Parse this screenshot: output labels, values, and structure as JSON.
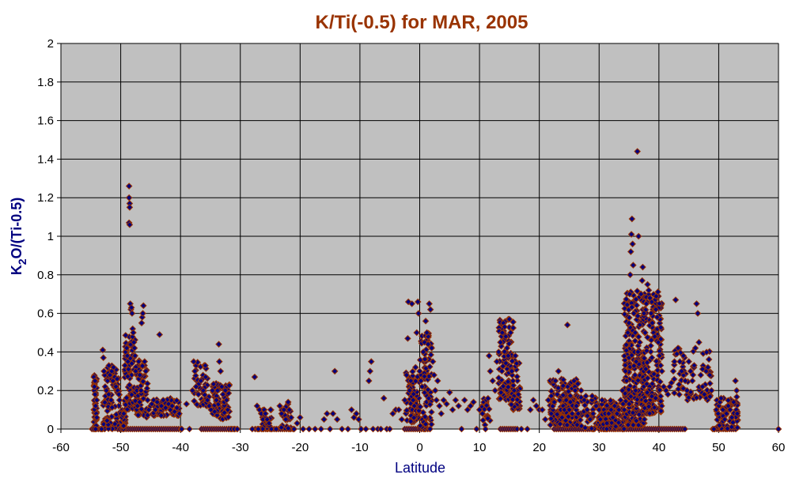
{
  "colors": {
    "title": "#993300",
    "axis_label": "#000080",
    "plot_bg": "#c0c0c0",
    "grid": "#000000",
    "marker_fill": "#000080",
    "marker_edge": "#993300"
  },
  "chart_data": {
    "type": "scatter",
    "title": "K/Ti(-0.5)  for MAR, 2005",
    "xlabel": "Latitude",
    "ylabel_main": "K",
    "ylabel_sub": "2",
    "ylabel_rest": "O/(Ti-0.5)",
    "xlim": [
      -60,
      60
    ],
    "ylim": [
      0,
      2
    ],
    "x_ticks": [
      -60,
      -50,
      -40,
      -30,
      -20,
      -10,
      0,
      10,
      20,
      30,
      40,
      50,
      60
    ],
    "y_ticks": [
      0,
      0.2,
      0.4,
      0.6,
      0.8,
      1,
      1.2,
      1.4,
      1.6,
      1.8,
      2
    ],
    "y_tick_labels": [
      "0",
      "0.2",
      "0.4",
      "0.6",
      "0.8",
      "1",
      "1.2",
      "1.4",
      "1.6",
      "1.8",
      "2"
    ],
    "grid": true,
    "legend": "none",
    "marker": "diamond",
    "points": [
      [
        -54.5,
        0.27
      ],
      [
        -54.4,
        0.22
      ],
      [
        -54.3,
        0.18
      ],
      [
        -54.2,
        0.12
      ],
      [
        -54.1,
        0.08
      ],
      [
        -54.0,
        0.06
      ],
      [
        -54.3,
        0.25
      ],
      [
        -54.5,
        0.0
      ],
      [
        -54.2,
        0.0
      ],
      [
        -54.0,
        0.15
      ],
      [
        -53.2,
        0.0
      ],
      [
        -53.0,
        0.41
      ],
      [
        -52.9,
        0.37
      ],
      [
        -52.8,
        0.3
      ],
      [
        -52.6,
        0.22
      ],
      [
        -52.4,
        0.2
      ],
      [
        -52.2,
        0.25
      ],
      [
        -52.0,
        0.18
      ],
      [
        -51.8,
        0.28
      ],
      [
        -51.6,
        0.15
      ],
      [
        -51.5,
        0.3
      ],
      [
        -51.3,
        0.25
      ],
      [
        -51.2,
        0.32
      ],
      [
        -51.0,
        0.27
      ],
      [
        -50.8,
        0.22
      ],
      [
        -50.6,
        0.26
      ],
      [
        -50.5,
        0.2
      ],
      [
        -50.3,
        0.18
      ],
      [
        -50.2,
        0.15
      ],
      [
        -50.0,
        0.08
      ],
      [
        -49.8,
        0.06
      ],
      [
        -49.6,
        0.07
      ],
      [
        -49.5,
        0.08
      ],
      [
        -49.3,
        0.33
      ],
      [
        -49.2,
        0.4
      ],
      [
        -49.0,
        0.42
      ],
      [
        -48.9,
        0.38
      ],
      [
        -48.8,
        0.35
      ],
      [
        -48.7,
        0.31
      ],
      [
        -48.6,
        1.26
      ],
      [
        -48.6,
        1.2
      ],
      [
        -48.5,
        1.17
      ],
      [
        -48.5,
        1.15
      ],
      [
        -48.6,
        1.07
      ],
      [
        -48.5,
        1.06
      ],
      [
        -48.4,
        0.65
      ],
      [
        -48.3,
        0.62
      ],
      [
        -48.2,
        0.63
      ],
      [
        -48.1,
        0.6
      ],
      [
        -48.0,
        0.52
      ],
      [
        -47.9,
        0.5
      ],
      [
        -47.8,
        0.45
      ],
      [
        -47.7,
        0.42
      ],
      [
        -47.6,
        0.38
      ],
      [
        -47.5,
        0.3
      ],
      [
        -47.3,
        0.2
      ],
      [
        -47.2,
        0.12
      ],
      [
        -47.0,
        0.35
      ],
      [
        -46.8,
        0.28
      ],
      [
        -46.6,
        0.2
      ],
      [
        -46.5,
        0.55
      ],
      [
        -46.4,
        0.58
      ],
      [
        -46.3,
        0.6
      ],
      [
        -46.2,
        0.64
      ],
      [
        -46.0,
        0.35
      ],
      [
        -45.8,
        0.3
      ],
      [
        -45.5,
        0.15
      ],
      [
        -45.3,
        0.1
      ],
      [
        -45.0,
        0.12
      ],
      [
        -44.8,
        0.13
      ],
      [
        -44.5,
        0.15
      ],
      [
        -44.2,
        0.1
      ],
      [
        -43.9,
        0.14
      ],
      [
        -43.5,
        0.49
      ],
      [
        -43.2,
        0.12
      ],
      [
        -42.9,
        0.15
      ],
      [
        -42.5,
        0.11
      ],
      [
        -42.0,
        0.13
      ],
      [
        -41.7,
        0.1
      ],
      [
        -41.4,
        0.12
      ],
      [
        -41.0,
        0.09
      ],
      [
        -40.6,
        0.11
      ],
      [
        -40.2,
        0.08
      ],
      [
        -39.8,
        0.0
      ],
      [
        -39.0,
        0.13
      ],
      [
        -38.5,
        0.0
      ],
      [
        -38.0,
        0.2
      ],
      [
        -37.8,
        0.35
      ],
      [
        -37.6,
        0.3
      ],
      [
        -37.4,
        0.22
      ],
      [
        -37.0,
        0.18
      ],
      [
        -36.6,
        0.25
      ],
      [
        -36.2,
        0.2
      ],
      [
        -35.8,
        0.27
      ],
      [
        -35.5,
        0.15
      ],
      [
        -35.2,
        0.12
      ],
      [
        -34.9,
        0.1
      ],
      [
        -34.6,
        0.08
      ],
      [
        -34.3,
        0.09
      ],
      [
        -34.0,
        0.15
      ],
      [
        -33.8,
        0.2
      ],
      [
        -33.6,
        0.44
      ],
      [
        -33.5,
        0.35
      ],
      [
        -33.3,
        0.3
      ],
      [
        -33.1,
        0.22
      ],
      [
        -32.9,
        0.18
      ],
      [
        -32.7,
        0.14
      ],
      [
        -32.5,
        0.2
      ],
      [
        -32.3,
        0.15
      ],
      [
        -32.1,
        0.1
      ],
      [
        -31.9,
        0.0
      ],
      [
        -31.5,
        0.0
      ],
      [
        -31.0,
        0.0
      ],
      [
        -30.5,
        0.0
      ],
      [
        -28.0,
        0.0
      ],
      [
        -27.6,
        0.27
      ],
      [
        -27.2,
        0.12
      ],
      [
        -27.0,
        0.0
      ],
      [
        -26.8,
        0.1
      ],
      [
        -26.5,
        0.08
      ],
      [
        -26.2,
        0.05
      ],
      [
        -26.0,
        0.1
      ],
      [
        -25.8,
        0.08
      ],
      [
        -25.5,
        0.05
      ],
      [
        -25.2,
        0.03
      ],
      [
        -24.8,
        0.0
      ],
      [
        -24.0,
        0.0
      ],
      [
        -23.4,
        0.12
      ],
      [
        -23.1,
        0.08
      ],
      [
        -22.7,
        0.1
      ],
      [
        -22.4,
        0.05
      ],
      [
        -22.0,
        0.14
      ],
      [
        -21.8,
        0.1
      ],
      [
        -21.5,
        0.06
      ],
      [
        -21.0,
        0.0
      ],
      [
        -20.5,
        0.03
      ],
      [
        -20.0,
        0.06
      ],
      [
        -19.5,
        0.0
      ],
      [
        -18.5,
        0.0
      ],
      [
        -17.5,
        0.0
      ],
      [
        -16.5,
        0.0
      ],
      [
        -16.0,
        0.05
      ],
      [
        -15.5,
        0.08
      ],
      [
        -15.0,
        0.0
      ],
      [
        -14.5,
        0.08
      ],
      [
        -14.2,
        0.3
      ],
      [
        -13.8,
        0.05
      ],
      [
        -13.0,
        0.0
      ],
      [
        -12.0,
        0.0
      ],
      [
        -11.4,
        0.1
      ],
      [
        -11.0,
        0.06
      ],
      [
        -10.6,
        0.08
      ],
      [
        -10.2,
        0.05
      ],
      [
        -9.8,
        0.0
      ],
      [
        -9.0,
        0.0
      ],
      [
        -8.5,
        0.25
      ],
      [
        -8.3,
        0.3
      ],
      [
        -8.1,
        0.35
      ],
      [
        -7.8,
        0.0
      ],
      [
        -7.0,
        0.0
      ],
      [
        -6.5,
        0.0
      ],
      [
        -6.0,
        0.16
      ],
      [
        -5.5,
        0.0
      ],
      [
        -5.0,
        0.0
      ],
      [
        -4.5,
        0.08
      ],
      [
        -4.0,
        0.1
      ],
      [
        -3.5,
        0.1
      ],
      [
        -3.0,
        0.05
      ],
      [
        -2.5,
        0.15
      ],
      [
        -2.2,
        0.28
      ],
      [
        -2.0,
        0.47
      ],
      [
        -1.9,
        0.66
      ],
      [
        -1.7,
        0.2
      ],
      [
        -1.5,
        0.25
      ],
      [
        -1.3,
        0.65
      ],
      [
        -1.1,
        0.15
      ],
      [
        -0.9,
        0.12
      ],
      [
        -0.7,
        0.32
      ],
      [
        -0.5,
        0.5
      ],
      [
        -0.3,
        0.66
      ],
      [
        -0.2,
        0.6
      ],
      [
        0.0,
        0.3
      ],
      [
        0.2,
        0.25
      ],
      [
        0.4,
        0.22
      ],
      [
        0.6,
        0.4
      ],
      [
        0.8,
        0.45
      ],
      [
        1.0,
        0.56
      ],
      [
        1.2,
        0.5
      ],
      [
        1.4,
        0.44
      ],
      [
        1.6,
        0.65
      ],
      [
        1.8,
        0.62
      ],
      [
        2.0,
        0.42
      ],
      [
        2.2,
        0.35
      ],
      [
        2.4,
        0.28
      ],
      [
        2.6,
        0.2
      ],
      [
        2.8,
        0.15
      ],
      [
        3.0,
        0.25
      ],
      [
        3.3,
        0.12
      ],
      [
        3.6,
        0.08
      ],
      [
        4.0,
        0.15
      ],
      [
        4.5,
        0.13
      ],
      [
        5.0,
        0.19
      ],
      [
        5.5,
        0.1
      ],
      [
        6.0,
        0.15
      ],
      [
        6.5,
        0.12
      ],
      [
        7.0,
        0.0
      ],
      [
        7.5,
        0.15
      ],
      [
        8.0,
        0.1
      ],
      [
        8.5,
        0.12
      ],
      [
        9.0,
        0.14
      ],
      [
        9.5,
        0.0
      ],
      [
        10.0,
        0.1
      ],
      [
        10.5,
        0.08
      ],
      [
        11.0,
        0.0
      ],
      [
        11.6,
        0.38
      ],
      [
        11.8,
        0.3
      ],
      [
        12.2,
        0.25
      ],
      [
        12.6,
        0.2
      ],
      [
        12.9,
        0.35
      ],
      [
        13.2,
        0.4
      ],
      [
        13.5,
        0.45
      ],
      [
        13.8,
        0.5
      ],
      [
        14.0,
        0.55
      ],
      [
        14.2,
        0.53
      ],
      [
        14.4,
        0.48
      ],
      [
        14.6,
        0.42
      ],
      [
        14.8,
        0.38
      ],
      [
        15.0,
        0.57
      ],
      [
        15.2,
        0.5
      ],
      [
        15.4,
        0.3
      ],
      [
        15.6,
        0.25
      ],
      [
        15.8,
        0.2
      ],
      [
        16.0,
        0.38
      ],
      [
        16.2,
        0.34
      ],
      [
        16.5,
        0.18
      ],
      [
        17.0,
        0.0
      ],
      [
        18.0,
        0.0
      ],
      [
        18.5,
        0.1
      ],
      [
        19.0,
        0.15
      ],
      [
        19.5,
        0.12
      ],
      [
        20.0,
        0.1
      ],
      [
        20.5,
        0.1
      ],
      [
        21.0,
        0.05
      ],
      [
        21.5,
        0.15
      ],
      [
        22.0,
        0.08
      ],
      [
        22.5,
        0.14
      ],
      [
        22.7,
        0.25
      ],
      [
        23.0,
        0.18
      ],
      [
        23.2,
        0.3
      ],
      [
        23.4,
        0.15
      ],
      [
        23.6,
        0.1
      ],
      [
        23.8,
        0.06
      ],
      [
        24.0,
        0.12
      ],
      [
        24.2,
        0.1
      ],
      [
        24.5,
        0.15
      ],
      [
        24.7,
        0.54
      ],
      [
        25.0,
        0.1
      ],
      [
        25.2,
        0.14
      ],
      [
        25.5,
        0.08
      ],
      [
        25.8,
        0.25
      ],
      [
        26.0,
        0.2
      ],
      [
        26.2,
        0.12
      ],
      [
        26.5,
        0.08
      ],
      [
        27.0,
        0.2
      ],
      [
        27.5,
        0.15
      ],
      [
        28.0,
        0.1
      ],
      [
        28.5,
        0.05
      ],
      [
        29.0,
        0.08
      ],
      [
        29.5,
        0.12
      ],
      [
        30.0,
        0.1
      ],
      [
        30.2,
        0.05
      ],
      [
        30.5,
        0.15
      ],
      [
        30.8,
        0.1
      ],
      [
        31.0,
        0.08
      ],
      [
        31.3,
        0.03
      ],
      [
        31.6,
        0.08
      ],
      [
        32.0,
        0.1
      ],
      [
        32.3,
        0.06
      ],
      [
        32.6,
        0.12
      ],
      [
        33.0,
        0.08
      ],
      [
        33.3,
        0.1
      ],
      [
        33.6,
        0.15
      ],
      [
        33.9,
        0.2
      ],
      [
        34.0,
        0.13
      ],
      [
        34.2,
        0.1
      ],
      [
        34.4,
        0.3
      ],
      [
        34.6,
        0.25
      ],
      [
        34.8,
        0.5
      ],
      [
        35.0,
        0.55
      ],
      [
        35.1,
        0.7
      ],
      [
        35.2,
        0.8
      ],
      [
        35.3,
        0.92
      ],
      [
        35.4,
        1.01
      ],
      [
        35.5,
        1.09
      ],
      [
        35.6,
        0.96
      ],
      [
        35.7,
        0.85
      ],
      [
        35.8,
        0.6
      ],
      [
        35.9,
        0.4
      ],
      [
        36.0,
        0.28
      ],
      [
        36.1,
        0.2
      ],
      [
        36.2,
        0.35
      ],
      [
        36.4,
        1.44
      ],
      [
        36.5,
        0.4
      ],
      [
        36.6,
        1.0
      ],
      [
        36.8,
        0.45
      ],
      [
        37.0,
        0.7
      ],
      [
        37.2,
        0.77
      ],
      [
        37.3,
        0.84
      ],
      [
        37.5,
        0.6
      ],
      [
        37.7,
        0.5
      ],
      [
        37.9,
        0.65
      ],
      [
        38.1,
        0.75
      ],
      [
        38.3,
        0.72
      ],
      [
        38.5,
        0.68
      ],
      [
        38.7,
        0.6
      ],
      [
        38.9,
        0.55
      ],
      [
        39.1,
        0.5
      ],
      [
        39.3,
        0.48
      ],
      [
        39.5,
        0.62
      ],
      [
        39.7,
        0.58
      ],
      [
        39.9,
        0.45
      ],
      [
        40.1,
        0.38
      ],
      [
        40.3,
        0.33
      ],
      [
        40.5,
        0.3
      ],
      [
        40.8,
        0.22
      ],
      [
        41.2,
        0.2
      ],
      [
        41.5,
        0.18
      ],
      [
        41.8,
        0.22
      ],
      [
        42.1,
        0.24
      ],
      [
        42.4,
        0.3
      ],
      [
        42.6,
        0.35
      ],
      [
        42.8,
        0.67
      ],
      [
        43.0,
        0.39
      ],
      [
        43.2,
        0.42
      ],
      [
        43.5,
        0.35
      ],
      [
        43.8,
        0.3
      ],
      [
        44.1,
        0.38
      ],
      [
        44.4,
        0.25
      ],
      [
        44.7,
        0.2
      ],
      [
        45.0,
        0.35
      ],
      [
        45.3,
        0.3
      ],
      [
        45.6,
        0.25
      ],
      [
        45.9,
        0.33
      ],
      [
        46.1,
        0.42
      ],
      [
        46.3,
        0.65
      ],
      [
        46.5,
        0.6
      ],
      [
        46.7,
        0.45
      ],
      [
        47.0,
        0.28
      ],
      [
        47.3,
        0.22
      ],
      [
        47.6,
        0.18
      ],
      [
        47.9,
        0.3
      ],
      [
        48.2,
        0.32
      ],
      [
        48.5,
        0.28
      ],
      [
        48.8,
        0.2
      ],
      [
        49.2,
        0.0
      ],
      [
        49.6,
        0.1
      ],
      [
        49.9,
        0.08
      ],
      [
        50.2,
        0.14
      ],
      [
        50.4,
        0.16
      ],
      [
        50.7,
        0.1
      ],
      [
        51.0,
        0.05
      ],
      [
        51.3,
        0.08
      ],
      [
        51.6,
        0.12
      ],
      [
        51.9,
        0.1
      ],
      [
        52.2,
        0.06
      ],
      [
        52.5,
        0.14
      ],
      [
        52.8,
        0.25
      ],
      [
        53.0,
        0.2
      ],
      [
        53.1,
        0.08
      ],
      [
        60.0,
        0.0
      ]
    ],
    "dense_clusters": [
      [
        -54.5,
        -54.0,
        0.0,
        0.28,
        40
      ],
      [
        -53.0,
        -50.2,
        0.0,
        0.33,
        90
      ],
      [
        -49.9,
        -49.2,
        0.0,
        0.1,
        20
      ],
      [
        -49.4,
        -47.6,
        0.1,
        0.5,
        70
      ],
      [
        -47.6,
        -45.5,
        0.06,
        0.36,
        60
      ],
      [
        -44.8,
        -40.2,
        0.07,
        0.16,
        50
      ],
      [
        -37.8,
        -35.2,
        0.12,
        0.36,
        40
      ],
      [
        -34.7,
        -31.8,
        0.05,
        0.24,
        70
      ],
      [
        -26.5,
        -24.8,
        0.0,
        0.11,
        30
      ],
      [
        -23.2,
        -21.5,
        0.0,
        0.13,
        20
      ],
      [
        -2.4,
        0.0,
        0.03,
        0.3,
        70
      ],
      [
        0.0,
        2.0,
        0.0,
        0.5,
        80
      ],
      [
        10.3,
        11.8,
        0.02,
        0.16,
        20
      ],
      [
        13.2,
        15.8,
        0.15,
        0.57,
        90
      ],
      [
        15.2,
        16.8,
        0.1,
        0.4,
        40
      ],
      [
        21.8,
        26.5,
        0.02,
        0.26,
        160
      ],
      [
        26.5,
        29.5,
        0.0,
        0.18,
        40
      ],
      [
        29.8,
        34.2,
        0.0,
        0.15,
        120
      ],
      [
        34.2,
        37.6,
        0.02,
        0.72,
        260
      ],
      [
        37.4,
        40.5,
        0.08,
        0.72,
        170
      ],
      [
        42.5,
        48.8,
        0.15,
        0.42,
        60
      ],
      [
        49.6,
        53.2,
        0.0,
        0.17,
        70
      ]
    ],
    "zero_row": [
      [
        -54.8,
        -53.0
      ],
      [
        -50.5,
        -39.8
      ],
      [
        -36.5,
        -30.5
      ],
      [
        -27.5,
        -21.0
      ],
      [
        -2.5,
        2.0
      ],
      [
        13.5,
        16.5
      ],
      [
        22.5,
        29.5
      ],
      [
        30.0,
        44.5
      ],
      [
        49.0,
        53.2
      ]
    ]
  }
}
